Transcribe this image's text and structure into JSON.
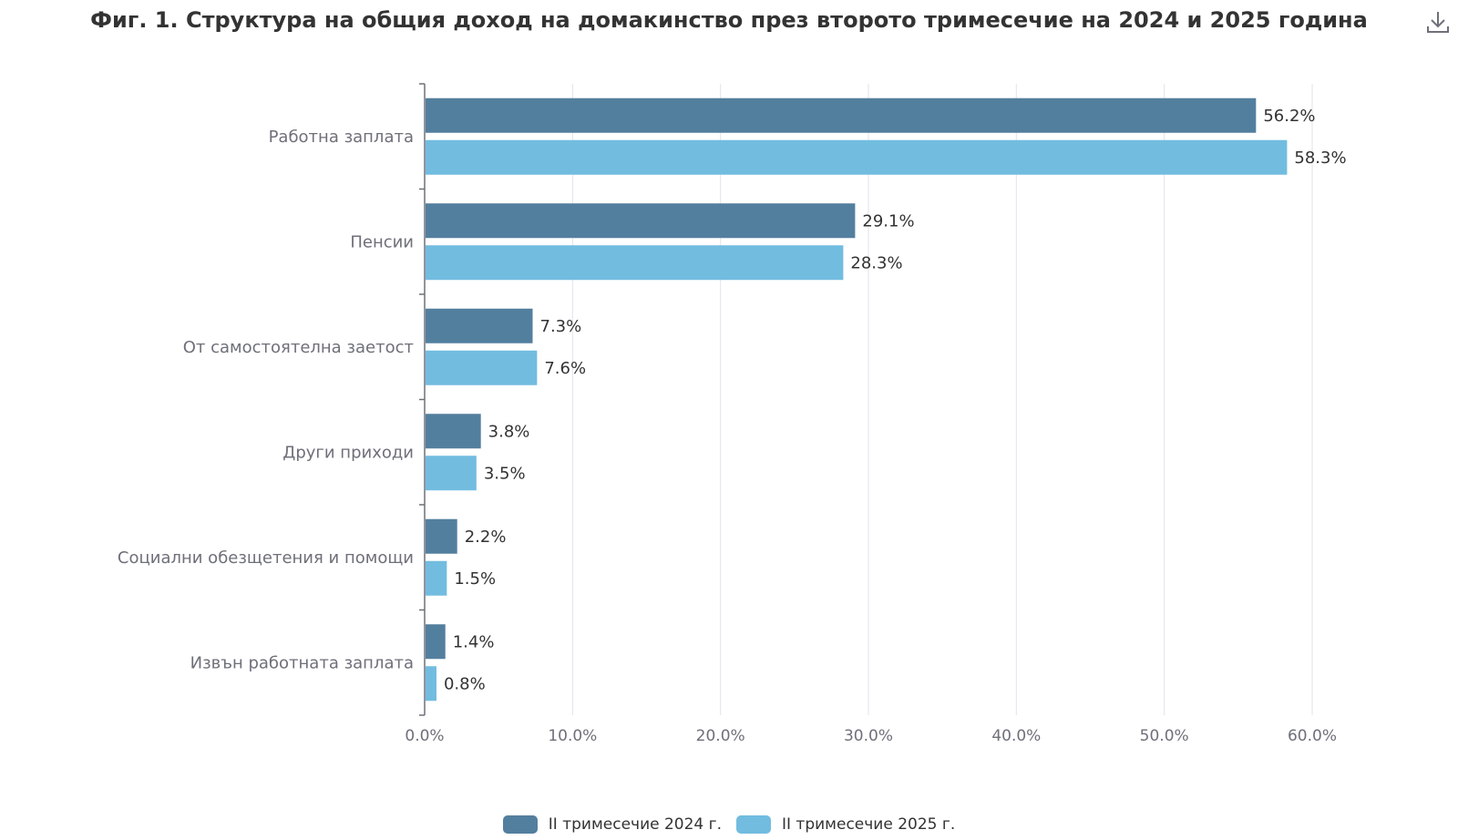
{
  "title": "Фиг. 1. Структура на общия доход на домакинство през второто тримесечие на 2024 и 2025 година",
  "download_icon": "download-icon",
  "colors": {
    "series_2024": "#537f9e",
    "series_2025": "#72bce0",
    "grid": "#e0e3ee",
    "axis": "#6e7079",
    "text": "#333333",
    "axis_label": "#6e7079"
  },
  "chart_data": {
    "type": "bar",
    "orientation": "horizontal",
    "categories": [
      "Работна заплата",
      "Пенсии",
      "От самостоятелна заетост",
      "Други приходи",
      "Социални обезщетения и помощи",
      "Извън работната заплата"
    ],
    "series": [
      {
        "name": "II тримесечие 2024 г.",
        "values": [
          56.2,
          29.1,
          7.3,
          3.8,
          2.2,
          1.4
        ]
      },
      {
        "name": "II тримесечие 2025 г.",
        "values": [
          58.3,
          28.3,
          7.6,
          3.5,
          1.5,
          0.8
        ]
      }
    ],
    "value_labels": [
      [
        "56.2%",
        "29.1%",
        "7.3%",
        "3.8%",
        "2.2%",
        "1.4%"
      ],
      [
        "58.3%",
        "28.3%",
        "7.6%",
        "3.5%",
        "1.5%",
        "0.8%"
      ]
    ],
    "xlim": [
      0,
      60
    ],
    "xticks": [
      "0.0%",
      "10.0%",
      "20.0%",
      "30.0%",
      "40.0%",
      "50.0%",
      "60.0%"
    ],
    "grid": true,
    "legend_position": "bottom-center"
  }
}
